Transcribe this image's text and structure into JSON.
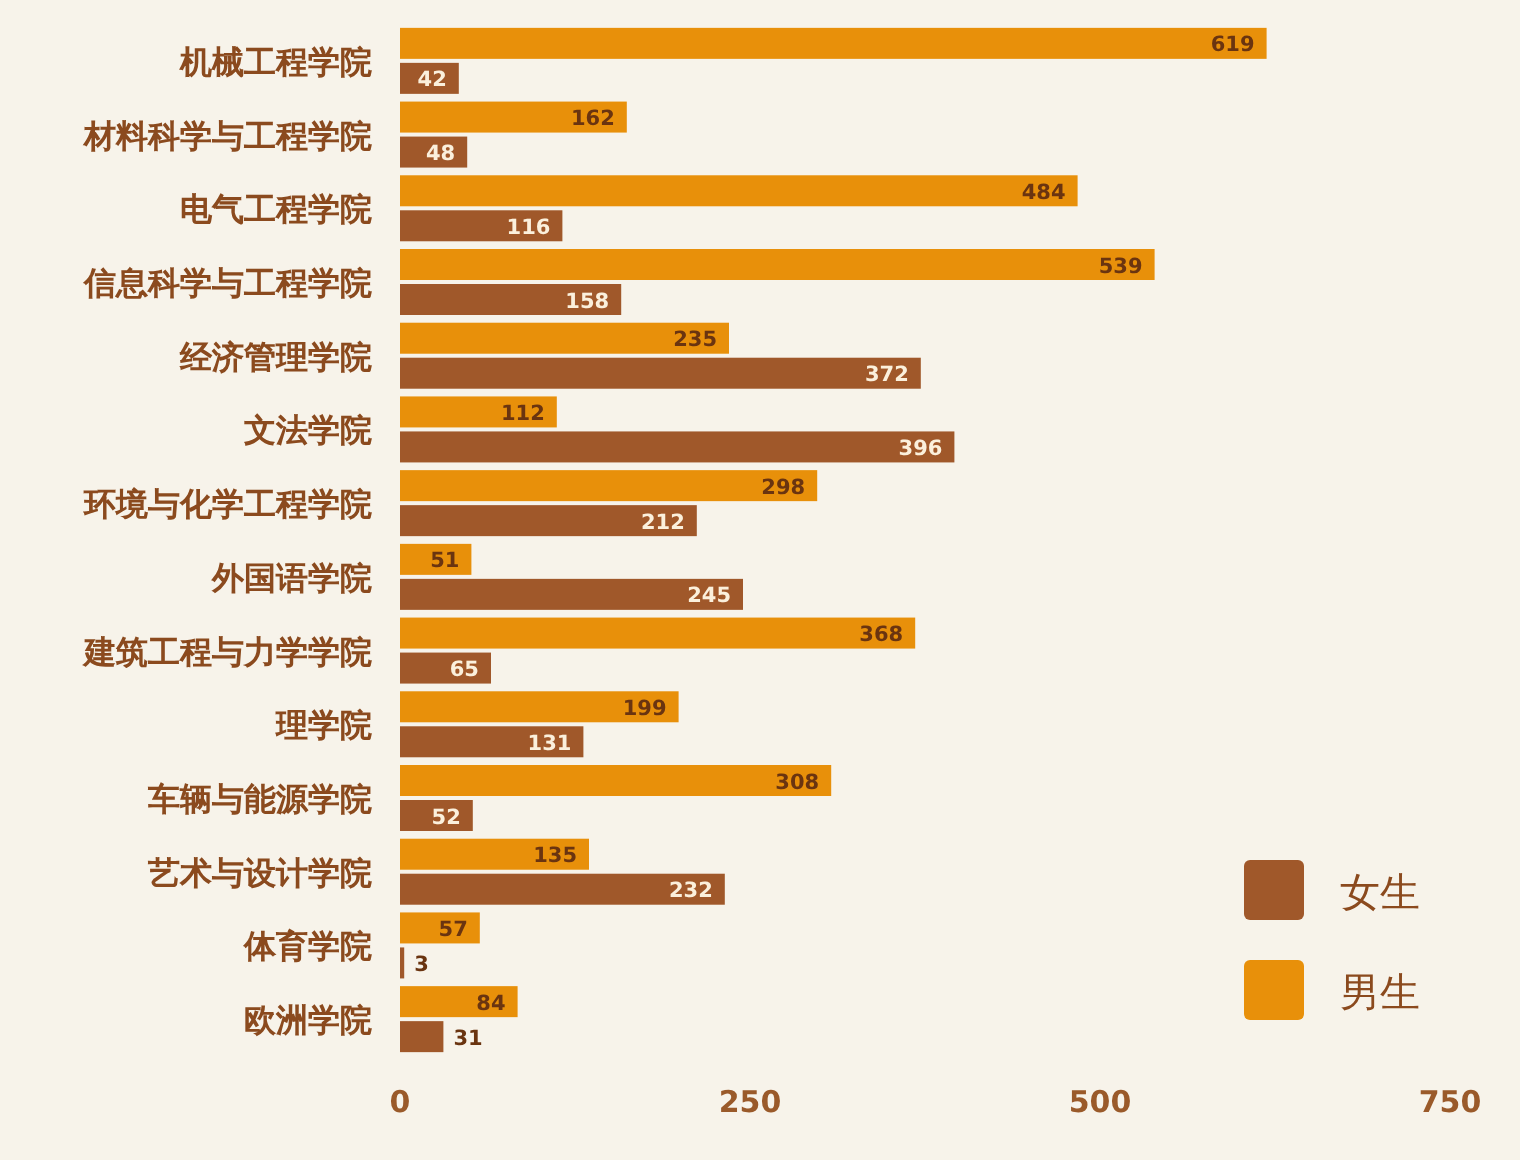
{
  "chart_data": {
    "type": "bar",
    "orientation": "horizontal",
    "categories": [
      "机械工程学院",
      "材料科学与工程学院",
      "电气工程学院",
      "信息科学与工程学院",
      "经济管理学院",
      "文法学院",
      "环境与化学工程学院",
      "外国语学院",
      "建筑工程与力学学院",
      "理学院",
      "车辆与能源学院",
      "艺术与设计学院",
      "体育学院",
      "欧洲学院"
    ],
    "series": [
      {
        "name": "女生",
        "color": "#a0582a",
        "values": [
          42,
          48,
          116,
          158,
          372,
          396,
          212,
          245,
          65,
          131,
          52,
          232,
          3,
          31
        ]
      },
      {
        "name": "男生",
        "color": "#e8900a",
        "values": [
          619,
          162,
          484,
          539,
          235,
          112,
          298,
          51,
          368,
          199,
          308,
          135,
          57,
          84
        ]
      }
    ],
    "xlim": [
      0,
      750
    ],
    "xticks": [
      0,
      250,
      500,
      750
    ],
    "data_labels": true,
    "legend": "bottom right",
    "grid": false
  }
}
